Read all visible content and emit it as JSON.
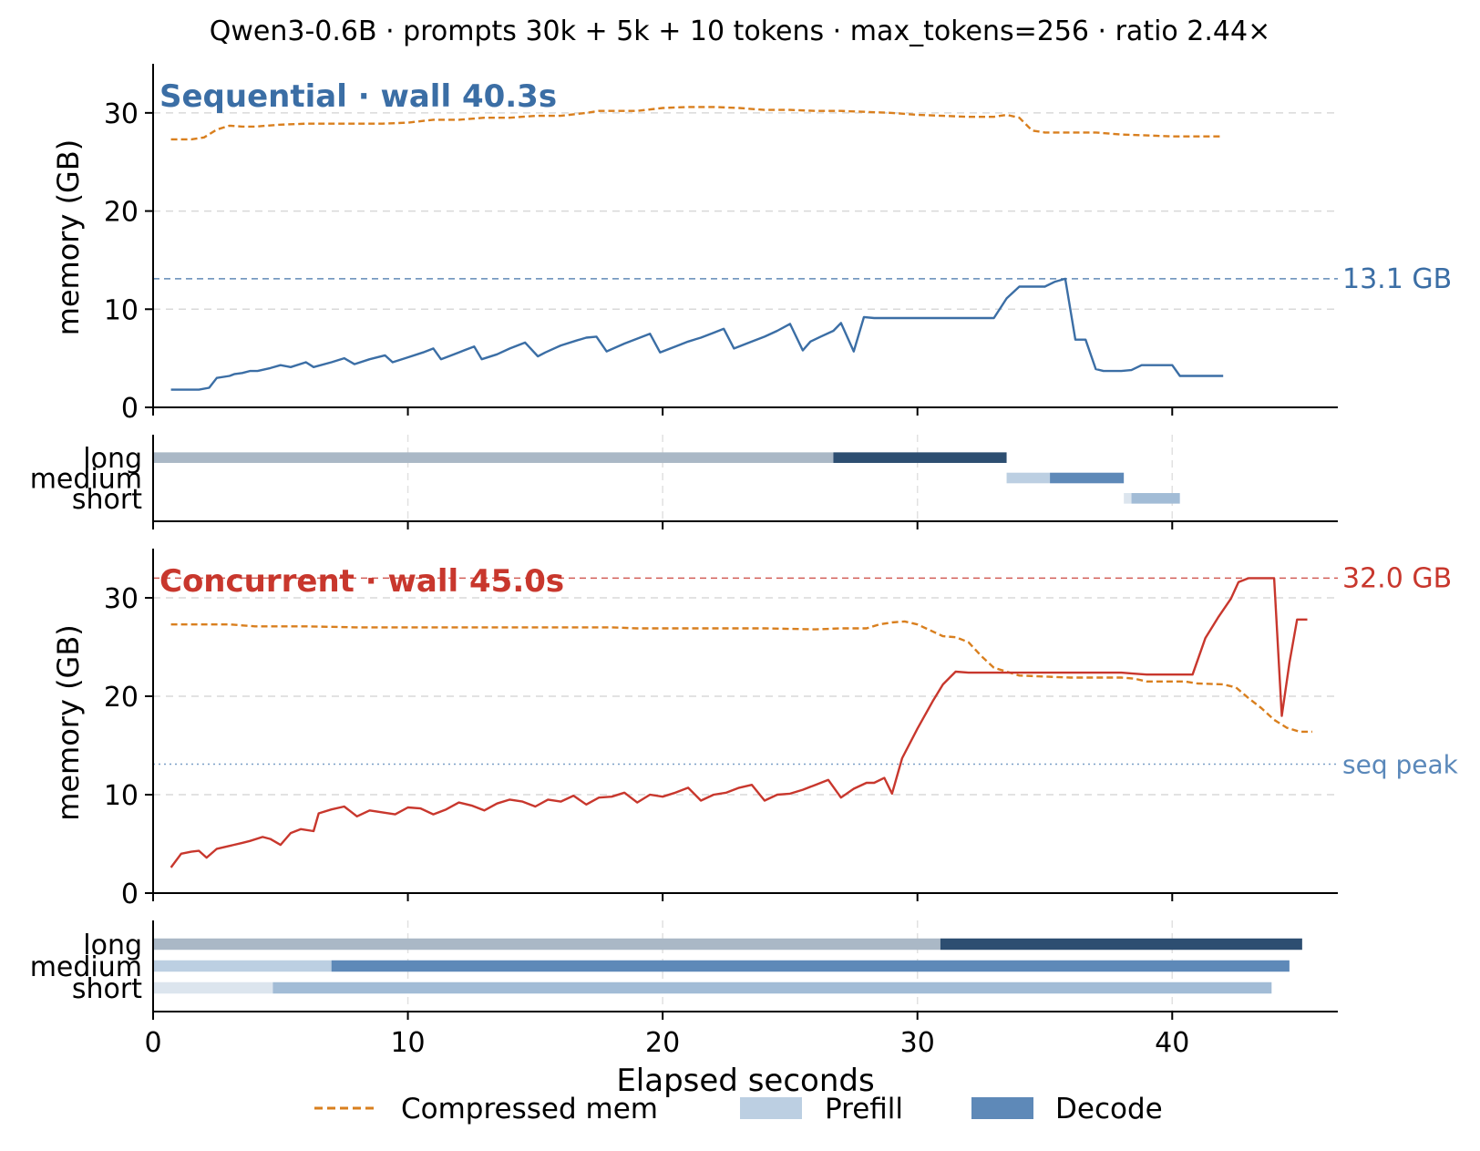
{
  "figure": {
    "title": "Qwen3-0.6B  ·  prompts 30k + 5k + 10 tokens  ·  max_tokens=256  ·  ratio 2.44×",
    "xlabel": "Elapsed seconds",
    "legend": {
      "placement": "bottom-center",
      "items": [
        {
          "label": "Compressed mem",
          "style": "dashed",
          "color": "#d97f1e"
        },
        {
          "label": "Prefill",
          "style": "patch",
          "color": "#bccfe2"
        },
        {
          "label": "Decode",
          "style": "patch",
          "color": "#5e89b8"
        }
      ]
    }
  },
  "chart_data": [
    {
      "type": "line",
      "panel": "sequential-memory",
      "title": "Sequential  ·  wall 40.3s",
      "title_color": "#3b6ea5",
      "ylabel": "memory (GB)",
      "xlim": [
        0,
        46.5
      ],
      "ylim": [
        0,
        35
      ],
      "xticks": [
        0,
        10,
        20,
        30,
        40
      ],
      "yticks": [
        0,
        10,
        20,
        30
      ],
      "grid": "horizontal-dashed",
      "series": [
        {
          "key": "compressed",
          "color": "#d97f1e",
          "style": "dashed",
          "x": [
            0.7,
            1.5,
            2.0,
            2.5,
            3.0,
            3.5,
            4.0,
            5.0,
            6.0,
            7.0,
            8.0,
            9.0,
            10.0,
            11.0,
            12.0,
            13.0,
            14.0,
            15.0,
            16.0,
            17.0,
            17.5,
            19.0,
            20.0,
            21.0,
            22.0,
            23.0,
            24.0,
            25.0,
            26.0,
            27.0,
            28.0,
            29.0,
            30.0,
            31.0,
            32.0,
            33.0,
            33.5,
            34.0,
            34.5,
            35.0,
            36.0,
            37.0,
            38.0,
            39.0,
            40.0,
            41.0,
            42.0
          ],
          "y": [
            27.3,
            27.3,
            27.5,
            28.3,
            28.7,
            28.6,
            28.6,
            28.8,
            28.9,
            28.9,
            28.9,
            28.9,
            29.0,
            29.3,
            29.3,
            29.5,
            29.5,
            29.7,
            29.7,
            30.0,
            30.2,
            30.2,
            30.5,
            30.6,
            30.6,
            30.5,
            30.3,
            30.3,
            30.2,
            30.2,
            30.1,
            30.0,
            29.8,
            29.7,
            29.6,
            29.6,
            29.8,
            29.5,
            28.2,
            28.0,
            28.0,
            28.0,
            27.8,
            27.7,
            27.6,
            27.6,
            27.6
          ]
        },
        {
          "key": "memory",
          "color": "#3b6ea5",
          "style": "solid",
          "x": [
            0.7,
            1.8,
            2.2,
            2.5,
            3.0,
            3.2,
            3.5,
            3.8,
            4.1,
            4.6,
            5.0,
            5.4,
            6.0,
            6.3,
            7.0,
            7.5,
            7.9,
            8.5,
            9.1,
            9.4,
            10.0,
            10.6,
            11.0,
            11.3,
            12.0,
            12.6,
            12.9,
            13.5,
            14.0,
            14.6,
            15.1,
            15.4,
            16.0,
            16.6,
            17.0,
            17.4,
            17.8,
            18.5,
            19.0,
            19.5,
            19.9,
            20.5,
            21.0,
            21.5,
            22.0,
            22.4,
            22.8,
            23.5,
            24.0,
            24.5,
            25.0,
            25.5,
            25.8,
            26.2,
            26.7,
            27.0,
            27.5,
            27.9,
            28.3,
            28.8,
            29.0,
            30.0,
            31.0,
            32.0,
            33.0,
            33.5,
            34.0,
            34.5,
            35.0,
            35.4,
            35.8,
            36.2,
            36.6,
            37.0,
            37.3,
            38.0,
            38.4,
            38.8,
            40.0,
            40.3,
            41.0,
            42.0
          ],
          "y": [
            1.8,
            1.8,
            2.0,
            3.0,
            3.2,
            3.4,
            3.5,
            3.7,
            3.7,
            4.0,
            4.3,
            4.1,
            4.6,
            4.1,
            4.6,
            5.0,
            4.4,
            4.9,
            5.3,
            4.6,
            5.1,
            5.6,
            6.0,
            4.9,
            5.6,
            6.2,
            4.9,
            5.4,
            6.0,
            6.6,
            5.2,
            5.6,
            6.3,
            6.8,
            7.1,
            7.2,
            5.7,
            6.5,
            7.0,
            7.5,
            5.6,
            6.2,
            6.7,
            7.1,
            7.6,
            8.0,
            6.0,
            6.7,
            7.2,
            7.8,
            8.5,
            5.8,
            6.7,
            7.2,
            7.8,
            8.6,
            5.7,
            9.2,
            9.1,
            9.1,
            9.1,
            9.1,
            9.1,
            9.1,
            9.1,
            11.1,
            12.3,
            12.3,
            12.3,
            12.8,
            13.1,
            6.9,
            6.9,
            3.9,
            3.7,
            3.7,
            3.8,
            4.3,
            4.3,
            3.2,
            3.2,
            3.2
          ]
        }
      ],
      "reference_lines": [
        {
          "y": 13.1,
          "label": "13.1 GB",
          "color": "#3b6ea5",
          "style": "dashed"
        }
      ]
    },
    {
      "type": "bar",
      "panel": "sequential-timeline",
      "orientation": "horizontal",
      "categories": [
        "long",
        "medium",
        "short"
      ],
      "segments": [
        {
          "category": "long",
          "phase": "prefill",
          "start": 0.0,
          "end": 26.7,
          "color": "#aab8c6"
        },
        {
          "category": "long",
          "phase": "decode",
          "start": 26.7,
          "end": 33.5,
          "color": "#2d4e71"
        },
        {
          "category": "medium",
          "phase": "prefill",
          "start": 33.5,
          "end": 35.2,
          "color": "#bccfe2"
        },
        {
          "category": "medium",
          "phase": "decode",
          "start": 35.2,
          "end": 38.1,
          "color": "#5e89b8"
        },
        {
          "category": "short",
          "phase": "prefill",
          "start": 38.1,
          "end": 38.4,
          "color": "#dce5ee"
        },
        {
          "category": "short",
          "phase": "decode",
          "start": 38.4,
          "end": 40.3,
          "color": "#a2bcd6"
        }
      ]
    },
    {
      "type": "line",
      "panel": "concurrent-memory",
      "title": "Concurrent  ·  wall 45.0s",
      "title_color": "#c8372d",
      "ylabel": "memory (GB)",
      "xlim": [
        0,
        46.5
      ],
      "ylim": [
        0,
        35
      ],
      "xticks": [
        0,
        10,
        20,
        30,
        40
      ],
      "yticks": [
        0,
        10,
        20,
        30
      ],
      "grid": "horizontal-dashed",
      "series": [
        {
          "key": "compressed",
          "color": "#d97f1e",
          "style": "dashed",
          "x": [
            0.7,
            2.0,
            3.0,
            4.0,
            6.0,
            8.0,
            10.0,
            12.0,
            14.0,
            16.0,
            18.0,
            19.0,
            20.0,
            22.0,
            24.0,
            26.0,
            27.0,
            28.0,
            28.5,
            29.0,
            29.5,
            30.0,
            31.0,
            31.5,
            32.0,
            32.5,
            33.0,
            34.0,
            35.0,
            36.0,
            37.0,
            38.0,
            38.5,
            39.0,
            40.0,
            40.5,
            41.0,
            42.0,
            42.5,
            43.0,
            43.5,
            44.0,
            44.5,
            45.0,
            45.5
          ],
          "y": [
            27.3,
            27.3,
            27.3,
            27.1,
            27.1,
            27.0,
            27.0,
            27.0,
            27.0,
            27.0,
            27.0,
            26.9,
            26.9,
            26.9,
            26.9,
            26.8,
            26.9,
            26.9,
            27.3,
            27.5,
            27.6,
            27.3,
            26.1,
            26.0,
            25.5,
            24.1,
            22.9,
            22.1,
            22.0,
            21.9,
            21.9,
            21.9,
            21.8,
            21.5,
            21.5,
            21.5,
            21.3,
            21.2,
            20.9,
            19.8,
            18.8,
            17.6,
            16.8,
            16.4,
            16.4
          ]
        },
        {
          "key": "memory",
          "color": "#c8372d",
          "style": "solid",
          "x": [
            0.7,
            1.1,
            1.5,
            1.8,
            2.1,
            2.5,
            3.0,
            3.5,
            3.8,
            4.3,
            4.6,
            5.0,
            5.4,
            5.8,
            6.3,
            6.5,
            7.0,
            7.5,
            8.0,
            8.5,
            9.0,
            9.5,
            10.0,
            10.5,
            11.0,
            11.5,
            12.0,
            12.5,
            13.0,
            13.5,
            14.0,
            14.5,
            15.0,
            15.5,
            16.0,
            16.5,
            17.0,
            17.5,
            18.0,
            18.5,
            19.0,
            19.5,
            20.0,
            20.5,
            21.0,
            21.5,
            22.0,
            22.5,
            23.0,
            23.5,
            24.0,
            24.5,
            25.0,
            25.5,
            26.0,
            26.5,
            27.0,
            27.5,
            28.0,
            28.3,
            28.7,
            29.0,
            29.4,
            30.0,
            30.6,
            31.0,
            31.5,
            32.0,
            33.0,
            35.0,
            38.0,
            38.5,
            39.0,
            40.0,
            40.8,
            41.3,
            41.8,
            42.3,
            42.6,
            43.0,
            44.0,
            44.3,
            44.6,
            44.9,
            45.3
          ],
          "y": [
            2.6,
            4.0,
            4.2,
            4.3,
            3.6,
            4.5,
            4.8,
            5.1,
            5.3,
            5.7,
            5.5,
            4.9,
            6.1,
            6.5,
            6.3,
            8.1,
            8.5,
            8.8,
            7.8,
            8.4,
            8.2,
            8.0,
            8.7,
            8.6,
            8.0,
            8.5,
            9.2,
            8.9,
            8.4,
            9.1,
            9.5,
            9.3,
            8.8,
            9.5,
            9.3,
            9.9,
            9.0,
            9.7,
            9.8,
            10.2,
            9.2,
            10.0,
            9.8,
            10.2,
            10.7,
            9.4,
            10.0,
            10.2,
            10.7,
            11.0,
            9.4,
            10.0,
            10.1,
            10.5,
            11.0,
            11.5,
            9.7,
            10.6,
            11.2,
            11.2,
            11.7,
            10.1,
            13.7,
            16.7,
            19.5,
            21.2,
            22.5,
            22.4,
            22.4,
            22.4,
            22.4,
            22.3,
            22.2,
            22.2,
            22.2,
            25.9,
            28.0,
            29.9,
            31.6,
            32.0,
            32.0,
            18.0,
            23.4,
            27.8,
            27.8
          ]
        }
      ],
      "reference_lines": [
        {
          "y": 32.0,
          "label": "32.0 GB",
          "color": "#c8372d",
          "style": "dashed"
        },
        {
          "y": 13.1,
          "label": "seq peak",
          "color": "#5a88ba",
          "style": "dotted"
        }
      ]
    },
    {
      "type": "bar",
      "panel": "concurrent-timeline",
      "orientation": "horizontal",
      "categories": [
        "long",
        "medium",
        "short"
      ],
      "segments": [
        {
          "category": "long",
          "phase": "prefill",
          "start": 0.0,
          "end": 30.9,
          "color": "#aab8c6"
        },
        {
          "category": "long",
          "phase": "decode",
          "start": 30.9,
          "end": 45.1,
          "color": "#2d4e71"
        },
        {
          "category": "medium",
          "phase": "prefill",
          "start": 0.0,
          "end": 7.0,
          "color": "#bccfe2"
        },
        {
          "category": "medium",
          "phase": "decode",
          "start": 7.0,
          "end": 44.6,
          "color": "#5e89b8"
        },
        {
          "category": "short",
          "phase": "prefill",
          "start": 0.0,
          "end": 4.7,
          "color": "#dce5ee"
        },
        {
          "category": "short",
          "phase": "decode",
          "start": 4.7,
          "end": 43.9,
          "color": "#a2bcd6"
        }
      ]
    }
  ]
}
